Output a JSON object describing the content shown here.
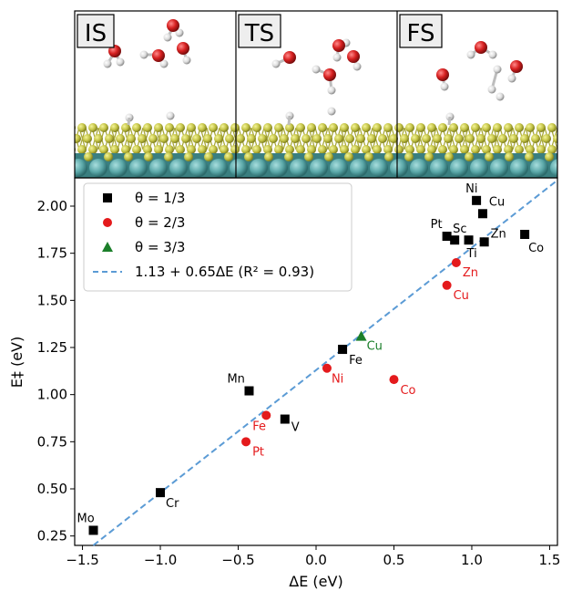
{
  "panels": [
    {
      "label": "IS"
    },
    {
      "label": "TS"
    },
    {
      "label": "FS"
    }
  ],
  "colors": {
    "theta_1_3": "#000000",
    "theta_2_3": "#e41a1c",
    "theta_3_3": "#1b7f2a",
    "fit": "#5b9bd5",
    "slab_top": "#c9c94a",
    "slab_bottom": "#5aa7a8",
    "oxygen": "#d62020",
    "hydrogen": "#e6e6e6"
  },
  "chart_data": {
    "type": "scatter",
    "xlabel": "ΔE (eV)",
    "ylabel": "E‡ (eV)",
    "xlim": [
      -1.55,
      1.55
    ],
    "ylim": [
      0.2,
      2.15
    ],
    "xticks": [
      -1.5,
      -1.0,
      -0.5,
      0.0,
      0.5,
      1.0,
      1.5
    ],
    "xtick_labels": [
      "−1.5",
      "−1.0",
      "−0.5",
      "0.0",
      "0.5",
      "1.0",
      "1.5"
    ],
    "yticks": [
      0.25,
      0.5,
      0.75,
      1.0,
      1.25,
      1.5,
      1.75,
      2.0
    ],
    "ytick_labels": [
      "0.25",
      "0.50",
      "0.75",
      "1.00",
      "1.25",
      "1.50",
      "1.75",
      "2.00"
    ],
    "grid": false,
    "legend_position": "top-left",
    "legend": [
      {
        "label": "θ = 1/3",
        "marker": "square",
        "series": "theta_1_3"
      },
      {
        "label": "θ = 2/3",
        "marker": "circle",
        "series": "theta_2_3"
      },
      {
        "label": "θ = 3/3",
        "marker": "triangle",
        "series": "theta_3_3"
      },
      {
        "label": "1.13 + 0.65ΔE (R² = 0.93)",
        "marker": "dashed-line",
        "series": "fit"
      }
    ],
    "series": [
      {
        "name": "θ = 1/3",
        "key": "theta_1_3",
        "marker": "square",
        "points": [
          {
            "label": "Mo",
            "x": -1.43,
            "y": 0.28
          },
          {
            "label": "Cr",
            "x": -1.0,
            "y": 0.48
          },
          {
            "label": "Mn",
            "x": -0.43,
            "y": 1.02
          },
          {
            "label": "V",
            "x": -0.2,
            "y": 0.87
          },
          {
            "label": "Fe",
            "x": 0.17,
            "y": 1.24
          },
          {
            "label": "Ni",
            "x": 1.03,
            "y": 2.03
          },
          {
            "label": "Cu",
            "x": 1.07,
            "y": 1.96
          },
          {
            "label": "Pt",
            "x": 0.84,
            "y": 1.84
          },
          {
            "label": "Sc",
            "x": 0.89,
            "y": 1.82
          },
          {
            "label": "Ti",
            "x": 0.98,
            "y": 1.82
          },
          {
            "label": "Zn",
            "x": 1.08,
            "y": 1.81
          },
          {
            "label": "Co",
            "x": 1.34,
            "y": 1.85
          }
        ]
      },
      {
        "name": "θ = 2/3",
        "key": "theta_2_3",
        "marker": "circle",
        "points": [
          {
            "label": "Pt",
            "x": -0.45,
            "y": 0.75
          },
          {
            "label": "Fe",
            "x": -0.32,
            "y": 0.89
          },
          {
            "label": "Ni",
            "x": 0.07,
            "y": 1.14
          },
          {
            "label": "Co",
            "x": 0.5,
            "y": 1.08
          },
          {
            "label": "Cu",
            "x": 0.84,
            "y": 1.58
          },
          {
            "label": "Zn",
            "x": 0.9,
            "y": 1.7
          }
        ]
      },
      {
        "name": "θ = 3/3",
        "key": "theta_3_3",
        "marker": "triangle",
        "points": [
          {
            "label": "Cu",
            "x": 0.29,
            "y": 1.31
          }
        ]
      }
    ],
    "fit_line": {
      "intercept": 1.13,
      "slope": 0.65
    }
  }
}
